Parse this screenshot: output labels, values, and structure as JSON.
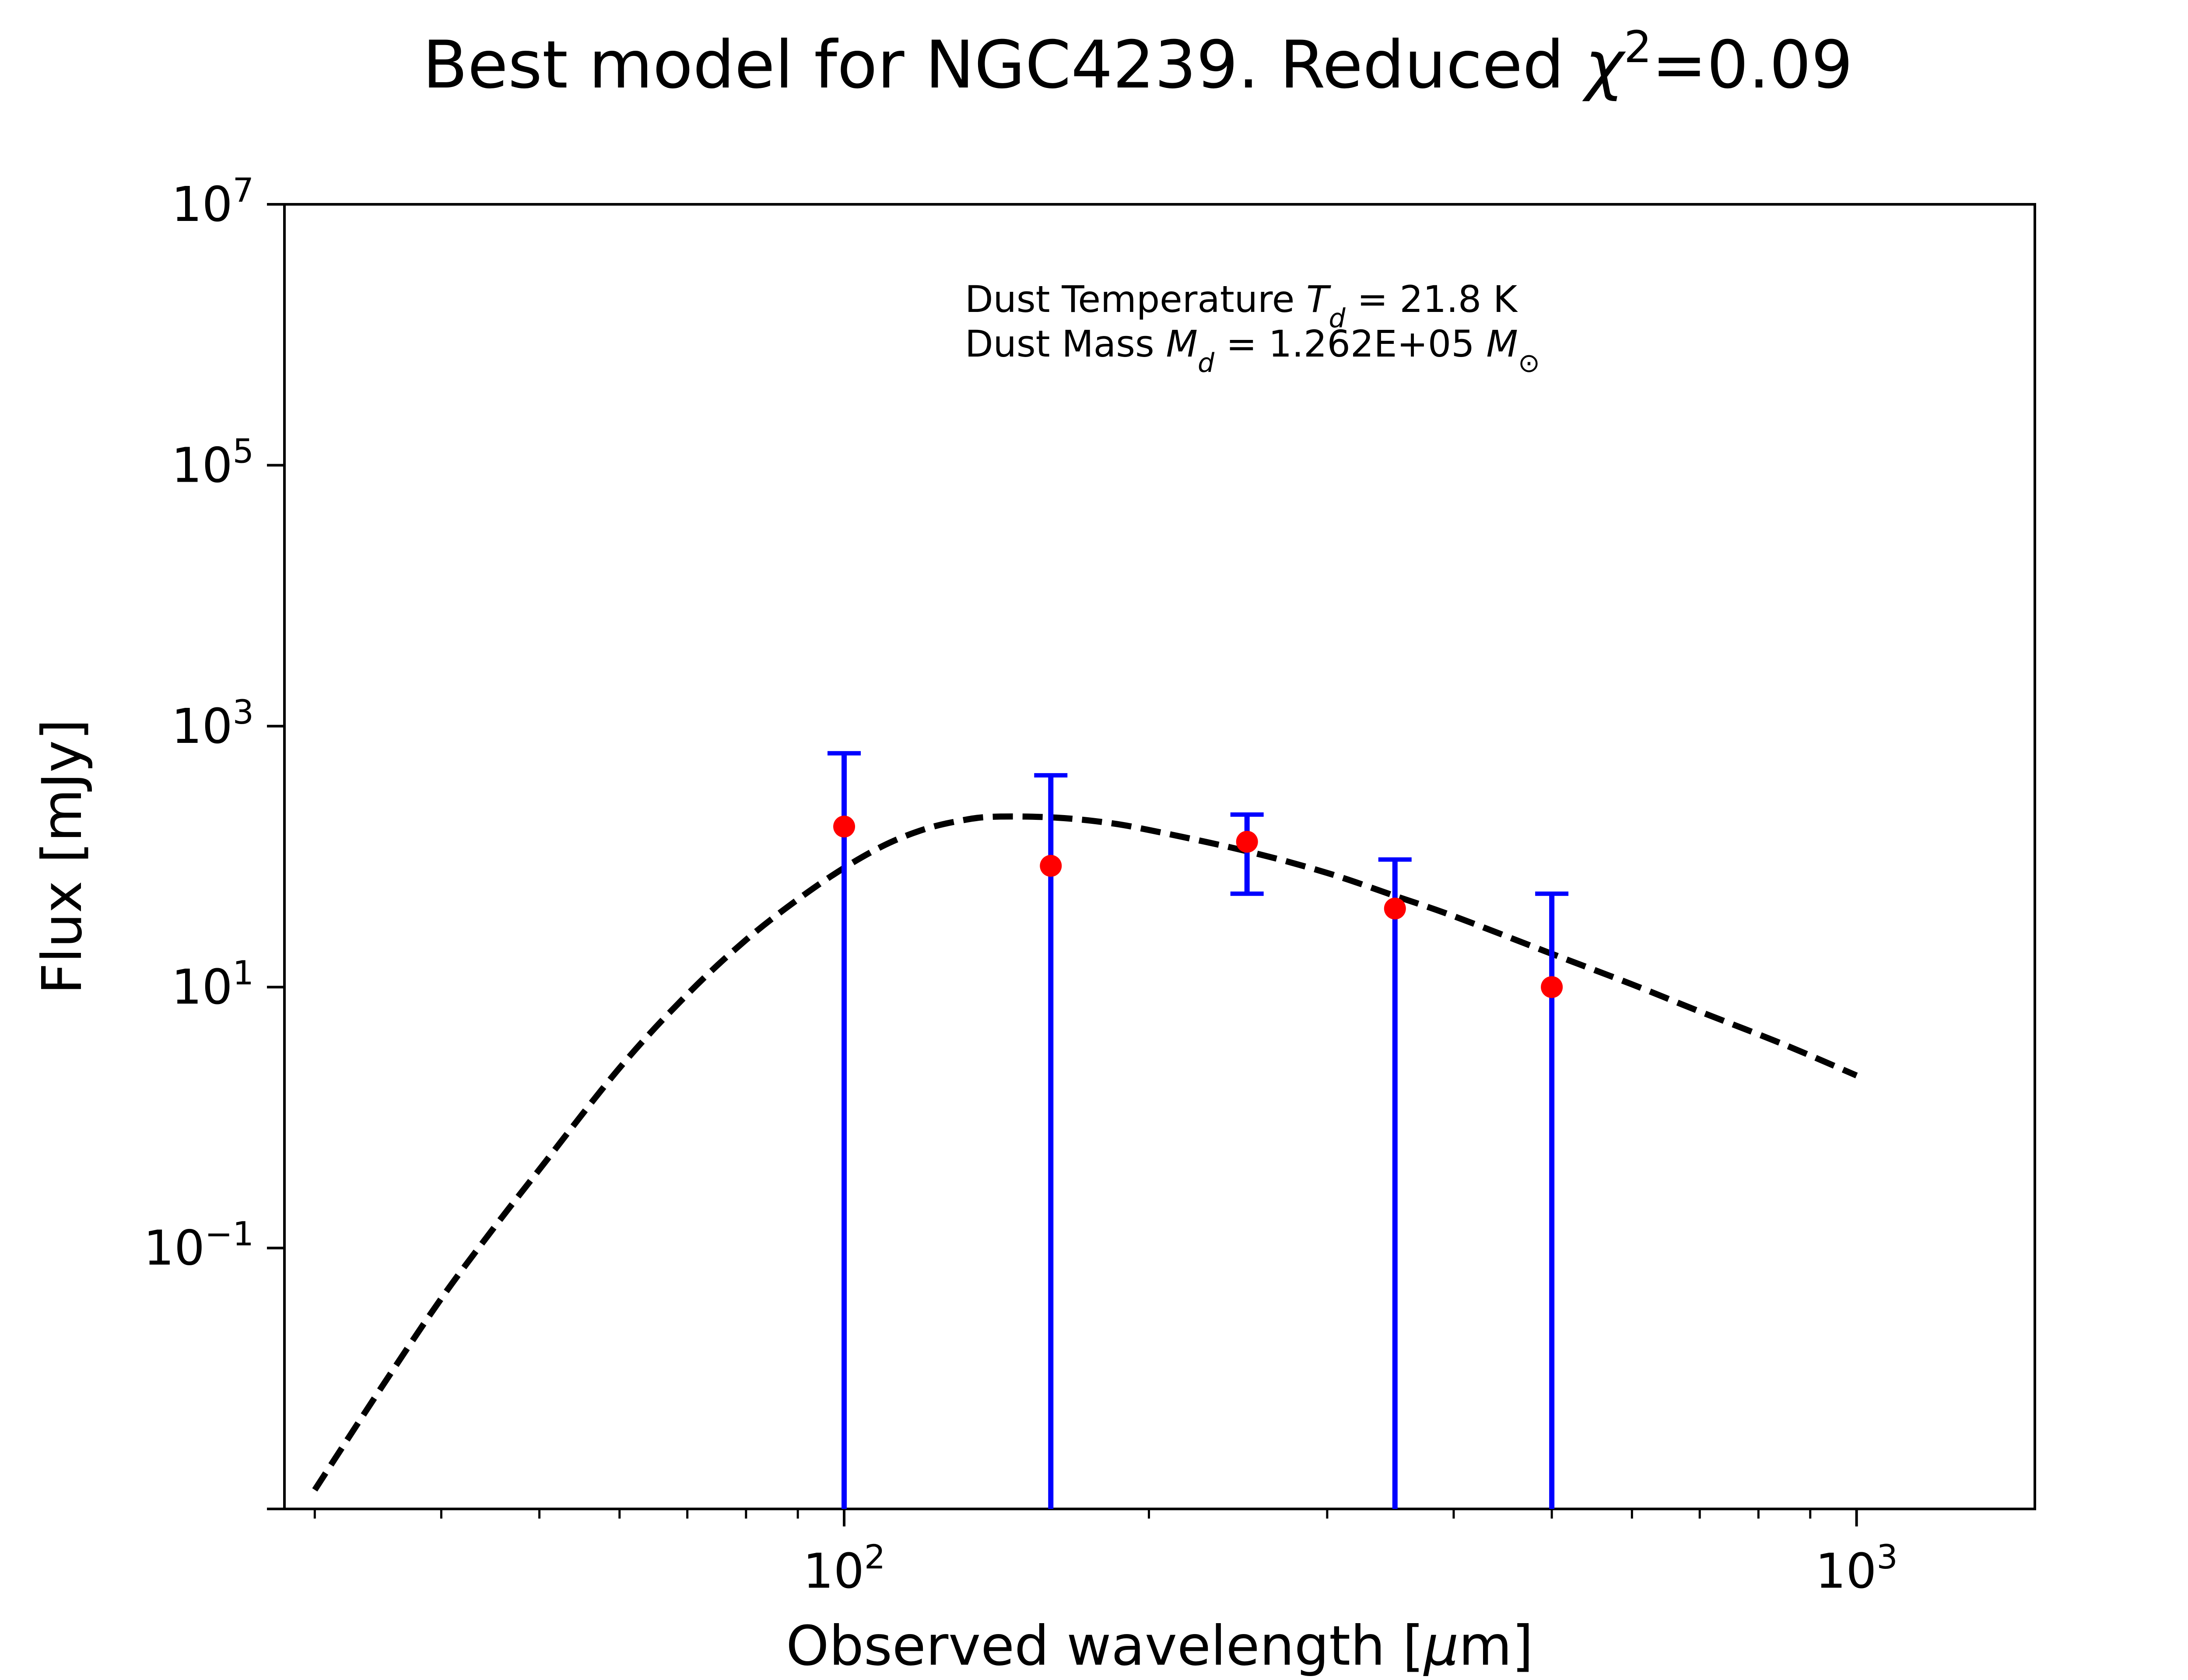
{
  "chart_data": {
    "type": "scatter",
    "title": {
      "prefix": "Best model for NGC4239. Reduced ",
      "chi_symbol": "χ",
      "chi_exponent": "2",
      "suffix": "=0.09"
    },
    "xlabel": {
      "prefix": "Observed wavelength [",
      "mu": "μ",
      "suffix": "m]"
    },
    "ylabel": "Flux [mJy]",
    "x_scale": "log",
    "y_scale": "log",
    "xlim": [
      28,
      1500
    ],
    "ylim": [
      0.001,
      10000000
    ],
    "x_ticks": [
      {
        "value": 100,
        "base": "10",
        "exp": "2"
      },
      {
        "value": 1000,
        "base": "10",
        "exp": "3"
      }
    ],
    "y_ticks": [
      {
        "value": 0.1,
        "base": "10",
        "exp": "−1"
      },
      {
        "value": 10,
        "base": "10",
        "exp": "1"
      },
      {
        "value": 1000,
        "base": "10",
        "exp": "3"
      },
      {
        "value": 100000,
        "base": "10",
        "exp": "5"
      },
      {
        "value": 10000000,
        "base": "10",
        "exp": "7"
      }
    ],
    "grid": false,
    "annotation": {
      "line1_prefix": "Dust Temperature ",
      "line1_symbol": "T",
      "line1_subscript": "d",
      "line1_suffix": " = 21.8 K",
      "line2_prefix": "Dust Mass ",
      "line2_symbol": "M",
      "line2_subscript": "d",
      "line2_value": " = 1.262E+05 ",
      "line2_unit_symbol": "M",
      "line2_unit_subscript": "⊙"
    },
    "observations": {
      "marker_color": "#ff0000",
      "errorbar_color": "#0000ff",
      "points": [
        {
          "x": 100,
          "y": 170,
          "y_low": 0.001,
          "y_high": 620
        },
        {
          "x": 160,
          "y": 85,
          "y_low": 0.001,
          "y_high": 420
        },
        {
          "x": 250,
          "y": 130,
          "y_low": 52,
          "y_high": 210
        },
        {
          "x": 350,
          "y": 40,
          "y_low": 0.001,
          "y_high": 95
        },
        {
          "x": 500,
          "y": 10,
          "y_low": 0.001,
          "y_high": 52
        }
      ]
    },
    "model": {
      "style": "dashed",
      "color": "#000000",
      "x": [
        30,
        35,
        40,
        45,
        50,
        60,
        70,
        80,
        90,
        100,
        110,
        120,
        130,
        140,
        160,
        180,
        200,
        250,
        300,
        350,
        400,
        500,
        600,
        700,
        850,
        1000
      ],
      "y": [
        0.0014,
        0.0088,
        0.041,
        0.14,
        0.4,
        2.4,
        8.8,
        23,
        47,
        82,
        124,
        162,
        188,
        202,
        200,
        184,
        160,
        110,
        75,
        50,
        35,
        18,
        10.5,
        6.5,
        3.6,
        2.1
      ]
    }
  }
}
